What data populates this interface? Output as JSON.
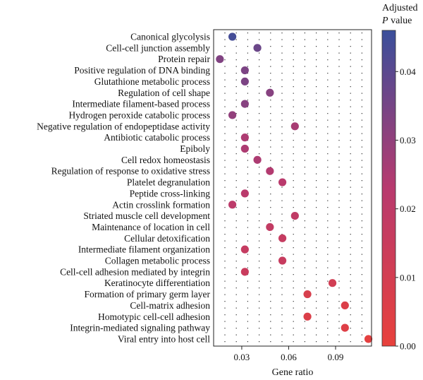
{
  "chart_data": {
    "type": "scatter",
    "xlabel": "Gene ratio",
    "xticks": [
      "0.03",
      "0.06",
      "0.09"
    ],
    "xtick_values": [
      0.03,
      0.06,
      0.09
    ],
    "xlim": [
      0.012,
      0.113
    ],
    "grid": "dotted vertical",
    "colorbar": {
      "title_line1": "Adjusted",
      "title_line2_italic": "P",
      "title_line2_rest": " value",
      "ticks": [
        "0.00",
        "0.01",
        "0.02",
        "0.03",
        "0.04"
      ],
      "tick_values": [
        0.0,
        0.01,
        0.02,
        0.03,
        0.04
      ],
      "range": [
        0.0,
        0.046
      ],
      "color_low": "#e8413c",
      "color_high": "#3a4f9b"
    },
    "points": [
      {
        "term": "Canonical glycolysis",
        "gene_ratio": 0.024,
        "p_adj": 0.044
      },
      {
        "term": "Cell-cell junction assembly",
        "gene_ratio": 0.04,
        "p_adj": 0.037
      },
      {
        "term": "Protein repair",
        "gene_ratio": 0.016,
        "p_adj": 0.033
      },
      {
        "term": "Positive regulation of DNA binding",
        "gene_ratio": 0.032,
        "p_adj": 0.034
      },
      {
        "term": "Glutathione metabolic process",
        "gene_ratio": 0.032,
        "p_adj": 0.034
      },
      {
        "term": "Regulation of cell shape",
        "gene_ratio": 0.048,
        "p_adj": 0.032
      },
      {
        "term": "Intermediate filament-based process",
        "gene_ratio": 0.032,
        "p_adj": 0.032
      },
      {
        "term": "Hydrogen peroxide catabolic process",
        "gene_ratio": 0.024,
        "p_adj": 0.03
      },
      {
        "term": "Negative regulation of endopeptidase activity",
        "gene_ratio": 0.064,
        "p_adj": 0.026
      },
      {
        "term": "Antibiotic catabolic process",
        "gene_ratio": 0.032,
        "p_adj": 0.025
      },
      {
        "term": "Epiboly",
        "gene_ratio": 0.032,
        "p_adj": 0.025
      },
      {
        "term": "Cell redox homeostasis",
        "gene_ratio": 0.04,
        "p_adj": 0.025
      },
      {
        "term": "Regulation of response to oxidative stress",
        "gene_ratio": 0.048,
        "p_adj": 0.024
      },
      {
        "term": "Platelet degranulation",
        "gene_ratio": 0.056,
        "p_adj": 0.022
      },
      {
        "term": "Peptide cross-linking",
        "gene_ratio": 0.032,
        "p_adj": 0.022
      },
      {
        "term": "Actin crosslink formation",
        "gene_ratio": 0.024,
        "p_adj": 0.021
      },
      {
        "term": "Striated muscle cell development",
        "gene_ratio": 0.064,
        "p_adj": 0.019
      },
      {
        "term": "Maintenance of location in cell",
        "gene_ratio": 0.048,
        "p_adj": 0.018
      },
      {
        "term": "Cellular detoxification",
        "gene_ratio": 0.056,
        "p_adj": 0.017
      },
      {
        "term": "Intermediate filament organization",
        "gene_ratio": 0.032,
        "p_adj": 0.017
      },
      {
        "term": "Collagen metabolic process",
        "gene_ratio": 0.056,
        "p_adj": 0.016
      },
      {
        "term": "Cell-cell adhesion mediated by integrin",
        "gene_ratio": 0.032,
        "p_adj": 0.015
      },
      {
        "term": "Keratinocyte differentiation",
        "gene_ratio": 0.088,
        "p_adj": 0.011
      },
      {
        "term": "Formation of primary germ layer",
        "gene_ratio": 0.072,
        "p_adj": 0.008
      },
      {
        "term": "Cell-matrix adhesion",
        "gene_ratio": 0.096,
        "p_adj": 0.006
      },
      {
        "term": "Homotypic cell-cell adhesion",
        "gene_ratio": 0.072,
        "p_adj": 0.006
      },
      {
        "term": "Integrin-mediated signaling pathway",
        "gene_ratio": 0.096,
        "p_adj": 0.005
      },
      {
        "term": "Viral entry into host cell",
        "gene_ratio": 0.111,
        "p_adj": 0.002
      }
    ]
  }
}
